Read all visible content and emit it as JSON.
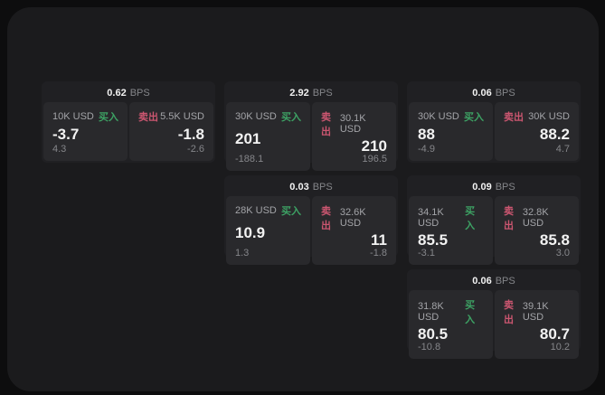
{
  "colors": {
    "bg": "#0d0d0e",
    "panel": "#1b1b1d",
    "card": "#202023",
    "cell": "#29292c",
    "text_primary": "#f2f2f2",
    "text_secondary": "#a3a4a8",
    "text_muted": "#85868a",
    "buy": "#3da264",
    "sell": "#cb5670"
  },
  "labels": {
    "bps": "BPS",
    "buy": "买入",
    "sell": "卖出"
  },
  "cards": [
    {
      "bps": "0.62",
      "buy": {
        "amount": "10K USD",
        "value": "-3.7",
        "sub": "4.3"
      },
      "sell": {
        "amount": "5.5K USD",
        "value": "-1.8",
        "sub": "-2.6"
      }
    },
    {
      "bps": "2.92",
      "buy": {
        "amount": "30K USD",
        "value": "201",
        "sub": "-188.1"
      },
      "sell": {
        "amount": "30.1K USD",
        "value": "210",
        "sub": "196.5"
      }
    },
    {
      "bps": "0.06",
      "buy": {
        "amount": "30K USD",
        "value": "88",
        "sub": "-4.9"
      },
      "sell": {
        "amount": "30K USD",
        "value": "88.2",
        "sub": "4.7"
      }
    },
    {
      "bps": "0.03",
      "buy": {
        "amount": "28K USD",
        "value": "10.9",
        "sub": "1.3"
      },
      "sell": {
        "amount": "32.6K USD",
        "value": "11",
        "sub": "-1.8"
      }
    },
    {
      "bps": "0.09",
      "buy": {
        "amount": "34.1K USD",
        "value": "85.5",
        "sub": "-3.1"
      },
      "sell": {
        "amount": "32.8K USD",
        "value": "85.8",
        "sub": "3.0"
      }
    },
    {
      "bps": "0.06",
      "buy": {
        "amount": "31.8K USD",
        "value": "80.5",
        "sub": "-10.8"
      },
      "sell": {
        "amount": "39.1K USD",
        "value": "80.7",
        "sub": "10.2"
      }
    }
  ]
}
